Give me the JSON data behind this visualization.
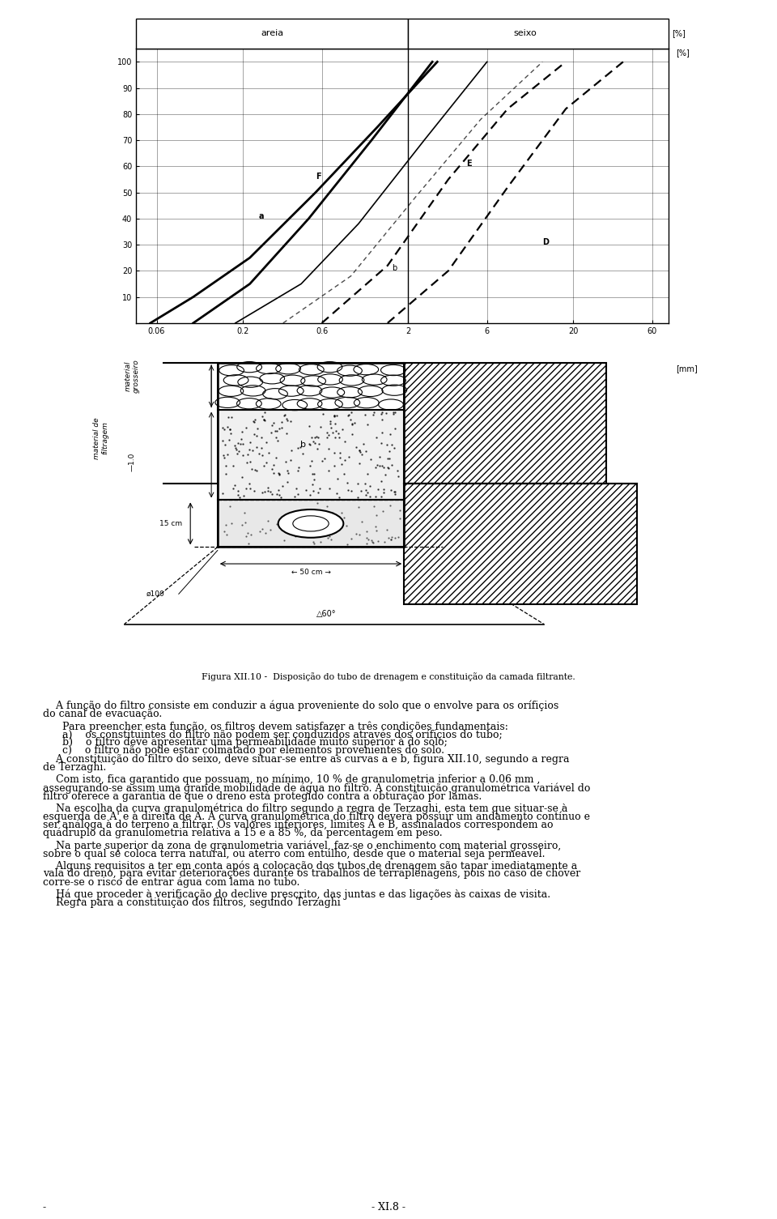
{
  "background_color": "#ffffff",
  "page_width": 9.6,
  "page_height": 15.05,
  "chart_yticks": [
    10,
    20,
    30,
    40,
    50,
    60,
    70,
    80,
    90,
    100
  ],
  "chart_xtick_labels": [
    "0.06",
    "0.2",
    "0.6",
    "2",
    "6",
    "20",
    "60"
  ],
  "chart_xtick_vals": [
    0.06,
    0.2,
    0.6,
    2,
    6,
    20,
    60
  ],
  "fig_caption": "Figura XII.10 -  Disposção do tubo de drenagem e constituição da camada filtrante.",
  "fs_main": 9.0,
  "fs_small": 7.5,
  "lh": 0.0148
}
